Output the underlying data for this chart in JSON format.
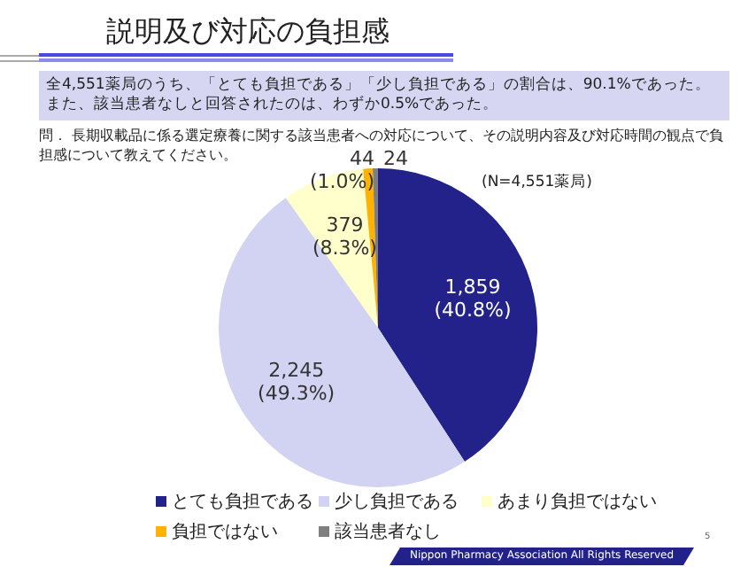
{
  "chart_data": {
    "type": "pie",
    "title": "説明及び対応の負担感",
    "subtitle": "全4,551薬局のうち、「とても負担である」「少し負担である」の割合は、90.1%であった。また、該当患者なしと回答されたのは、わずか0.5%であった。",
    "categories": [
      "とても負担である",
      "少し負担である",
      "あまり負担ではない",
      "負担ではない",
      "該当患者なし"
    ],
    "values": [
      1859,
      2245,
      379,
      44,
      24
    ],
    "colors": [
      "#22228a",
      "#d2d2f2",
      "#ffffcc",
      "#ffb300",
      "#7f7f7f"
    ],
    "value_labels": [
      "1,859\n(40.8%)",
      "2,245\n(49.3%)",
      "379\n(8.3%)",
      "44\n(1.0%)",
      "24"
    ],
    "legend": "bottom",
    "annotations": [
      "問． 長期収載品に係る選定療養に関する該当患者への対応について、その説明内容及び対応時間の観点で負担感について教えてください。",
      "(N=4,551薬局)",
      "Nippon Pharmacy Association All Rights Reserved",
      "5"
    ]
  }
}
